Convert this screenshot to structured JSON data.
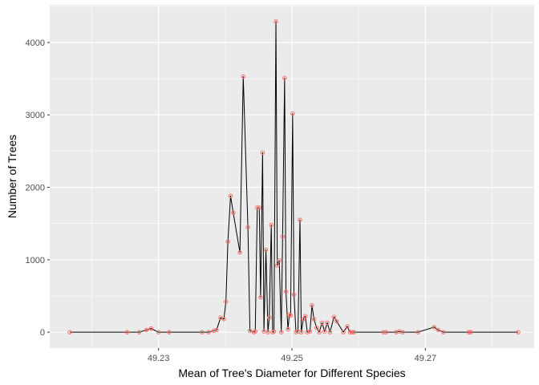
{
  "chart_data": {
    "type": "line",
    "xlabel": "Mean of Tree's Diameter for Different Species",
    "ylabel": "Number of Trees",
    "xlim": [
      49.2137,
      49.2863
    ],
    "ylim": [
      -220,
      4520
    ],
    "x_ticks": [
      49.23,
      49.25,
      49.27
    ],
    "x_tick_labels": [
      "49.23",
      "49.25",
      "49.27"
    ],
    "y_ticks": [
      0,
      1000,
      2000,
      3000,
      4000
    ],
    "y_tick_labels": [
      "0",
      "1000",
      "2000",
      "3000",
      "4000"
    ],
    "grid": true,
    "legend": "none",
    "series": [
      {
        "line_color": "#000000",
        "point_color": "#F8766D",
        "x": [
          49.2167,
          49.2253,
          49.2271,
          49.2282,
          49.2289,
          49.23,
          49.2316,
          49.2365,
          49.2375,
          49.2383,
          49.2387,
          49.2393,
          49.2398,
          49.2401,
          49.2404,
          49.2408,
          49.2412,
          49.2422,
          49.2427,
          49.2434,
          49.2437,
          49.2443,
          49.2445,
          49.2448,
          49.2451,
          49.2453,
          49.2456,
          49.2458,
          49.2461,
          49.2464,
          49.2466,
          49.2469,
          49.2471,
          49.2473,
          49.2476,
          49.2478,
          49.2481,
          49.2484,
          49.2486,
          49.2489,
          49.2491,
          49.2494,
          49.2496,
          49.2498,
          49.2501,
          49.2503,
          49.2506,
          49.2509,
          49.2512,
          49.2514,
          49.2517,
          49.252,
          49.2523,
          49.2527,
          49.253,
          49.2533,
          49.2537,
          49.2541,
          49.2545,
          49.2549,
          49.2553,
          49.2557,
          49.2563,
          49.2567,
          49.2577,
          49.2583,
          49.2587,
          49.259,
          49.2593,
          49.2637,
          49.2641,
          49.2656,
          49.2661,
          49.2666,
          49.2689,
          49.2713,
          49.2719,
          49.2727,
          49.2765,
          49.2768,
          49.2839
        ],
        "y": [
          0,
          0,
          0,
          30,
          50,
          0,
          0,
          0,
          0,
          20,
          30,
          200,
          180,
          420,
          1250,
          1880,
          1650,
          1100,
          3530,
          1450,
          20,
          0,
          10,
          1720,
          1720,
          480,
          2480,
          10,
          1140,
          0,
          200,
          1480,
          0,
          10,
          4290,
          920,
          990,
          0,
          1320,
          3510,
          560,
          40,
          240,
          230,
          3020,
          520,
          0,
          10,
          1550,
          0,
          180,
          220,
          0,
          10,
          370,
          180,
          60,
          0,
          130,
          10,
          130,
          0,
          210,
          150,
          0,
          80,
          0,
          0,
          0,
          0,
          0,
          0,
          10,
          0,
          0,
          70,
          30,
          0,
          0,
          0,
          0
        ]
      }
    ]
  }
}
